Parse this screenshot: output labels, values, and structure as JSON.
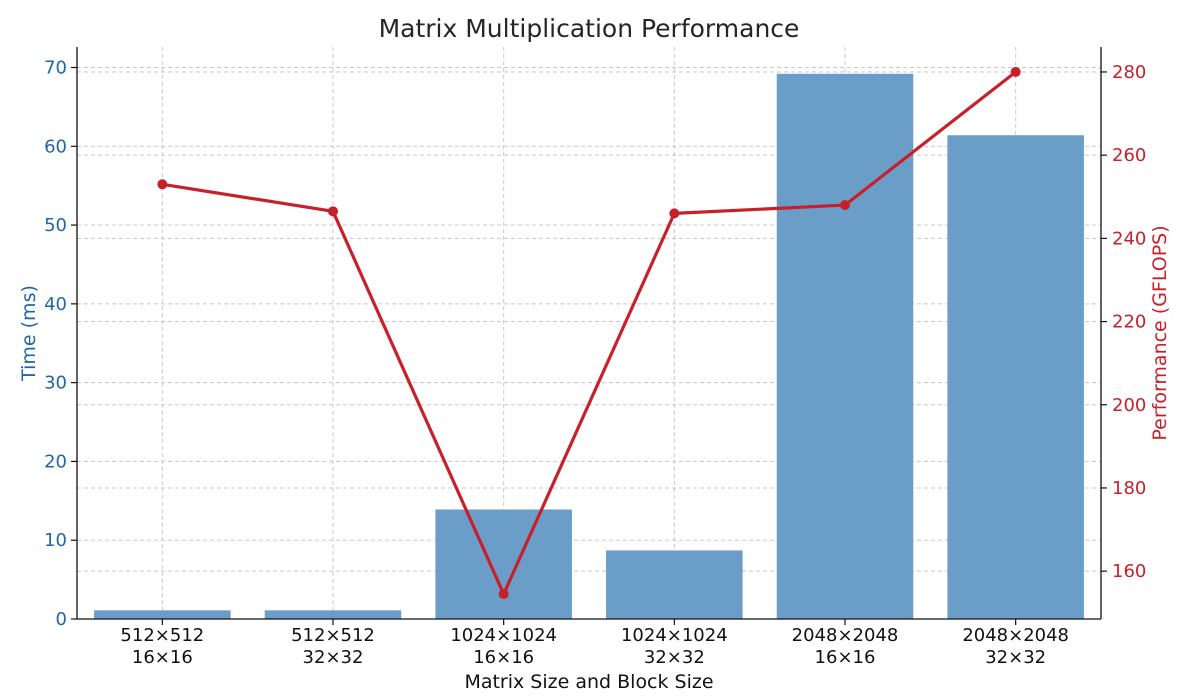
{
  "chart_data": {
    "type": "bar",
    "title": "Matrix Multiplication Performance",
    "xlabel": "Matrix Size and Block Size",
    "categories": [
      [
        "512×512",
        "16×16"
      ],
      [
        "512×512",
        "32×32"
      ],
      [
        "1024×1024",
        "16×16"
      ],
      [
        "1024×1024",
        "32×32"
      ],
      [
        "2048×2048",
        "16×16"
      ],
      [
        "2048×2048",
        "32×32"
      ]
    ],
    "series": [
      {
        "type": "bar",
        "axis": "left",
        "values": [
          1.1,
          1.1,
          13.9,
          8.7,
          69.2,
          61.4
        ],
        "color": "#6a9ec9"
      },
      {
        "type": "line",
        "axis": "right",
        "values": [
          253,
          246.5,
          154.5,
          246,
          248,
          280
        ],
        "color": "#c8202a"
      }
    ],
    "y_left": {
      "label": "Time (ms)",
      "lim": [
        0,
        72.6
      ],
      "ticks": [
        0,
        10,
        20,
        30,
        40,
        50,
        60,
        70
      ],
      "color": "#2166a8"
    },
    "y_right": {
      "label": "Performance (GFLOPS)",
      "lim": [
        148.5,
        286
      ],
      "ticks": [
        160,
        180,
        200,
        220,
        240,
        260,
        280
      ],
      "color": "#c8202a"
    },
    "grid": true,
    "legend": "none"
  }
}
